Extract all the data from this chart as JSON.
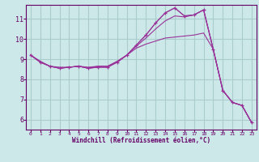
{
  "xlabel": "Windchill (Refroidissement éolien,°C)",
  "bg_color": "#cce8e8",
  "grid_color": "#aacccc",
  "line_color": "#993399",
  "xlim": [
    -0.5,
    23.5
  ],
  "ylim": [
    5.5,
    11.7
  ],
  "yticks": [
    6,
    7,
    8,
    9,
    10,
    11
  ],
  "xticks": [
    0,
    1,
    2,
    3,
    4,
    5,
    6,
    7,
    8,
    9,
    10,
    11,
    12,
    13,
    14,
    15,
    16,
    17,
    18,
    19,
    20,
    21,
    22,
    23
  ],
  "series": [
    {
      "x": [
        0,
        1,
        2,
        3,
        4,
        5,
        6,
        7,
        8,
        9,
        10,
        11,
        12,
        13,
        14,
        15,
        16,
        17,
        18,
        19,
        20,
        21,
        22,
        23
      ],
      "y": [
        9.2,
        8.85,
        8.65,
        8.55,
        8.6,
        8.65,
        8.55,
        8.6,
        8.6,
        8.85,
        9.2,
        9.7,
        10.2,
        10.8,
        11.3,
        11.55,
        11.15,
        11.2,
        11.45,
        9.5,
        7.45,
        6.85,
        6.7,
        5.85
      ],
      "marker": false
    },
    {
      "x": [
        0,
        1,
        2,
        3,
        4,
        5,
        6,
        7,
        8,
        9,
        10,
        11,
        12,
        13,
        14,
        15,
        16,
        17,
        18,
        19,
        20,
        21,
        22,
        23
      ],
      "y": [
        9.2,
        8.85,
        8.65,
        8.55,
        8.6,
        8.65,
        8.55,
        8.65,
        8.65,
        8.85,
        9.2,
        9.65,
        10.05,
        10.5,
        10.9,
        11.15,
        11.1,
        11.2,
        11.45,
        9.5,
        7.45,
        6.85,
        6.7,
        5.85
      ],
      "marker": false
    },
    {
      "x": [
        0,
        1,
        2,
        3,
        4,
        5,
        6,
        7,
        8,
        9,
        10,
        11,
        12,
        13,
        14,
        15,
        16,
        17,
        18,
        19,
        20,
        21,
        22,
        23
      ],
      "y": [
        9.2,
        8.9,
        8.65,
        8.6,
        8.6,
        8.65,
        8.6,
        8.65,
        8.65,
        8.9,
        9.2,
        9.55,
        9.75,
        9.9,
        10.05,
        10.1,
        10.15,
        10.2,
        10.3,
        9.5,
        7.45,
        6.85,
        6.7,
        5.85
      ],
      "marker": false
    },
    {
      "x": [
        0,
        1,
        2,
        3,
        4,
        5,
        6,
        7,
        8,
        9,
        10,
        11,
        12,
        13,
        14,
        15,
        16,
        17,
        18,
        19,
        20,
        21,
        22,
        23
      ],
      "y": [
        9.2,
        8.85,
        8.65,
        8.55,
        8.6,
        8.65,
        8.55,
        8.6,
        8.6,
        8.85,
        9.2,
        9.7,
        10.2,
        10.8,
        11.3,
        11.55,
        11.15,
        11.2,
        11.45,
        9.5,
        7.45,
        6.85,
        6.7,
        5.85
      ],
      "marker": true
    }
  ]
}
